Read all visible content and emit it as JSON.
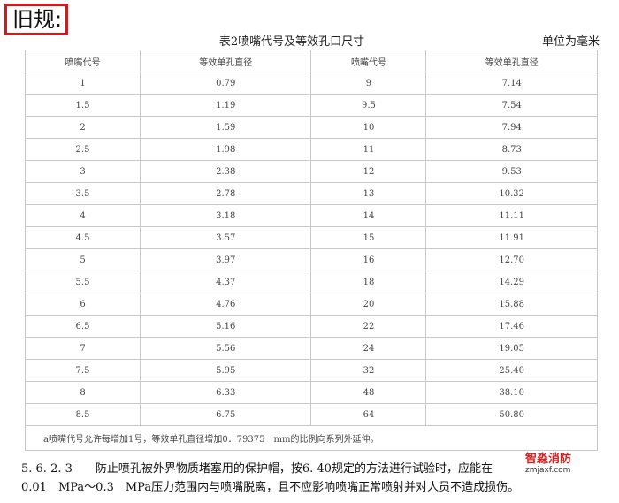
{
  "header": {
    "label": "旧规:",
    "title": "表2喷嘴代号及等效孔口尺寸",
    "unit": "单位为毫米"
  },
  "table": {
    "columns": [
      "喷嘴代号",
      "等效单孔直径",
      "喷嘴代号",
      "等效单孔直径"
    ],
    "rows": [
      [
        "1",
        "0.79",
        "9",
        "7.14"
      ],
      [
        "1.5",
        "1.19",
        "9.5",
        "7.54"
      ],
      [
        "2",
        "1.59",
        "10",
        "7.94"
      ],
      [
        "2.5",
        "1.98",
        "11",
        "8.73"
      ],
      [
        "3",
        "2.38",
        "12",
        "9.53"
      ],
      [
        "3.5",
        "2.78",
        "13",
        "10.32"
      ],
      [
        "4",
        "3.18",
        "14",
        "11.11"
      ],
      [
        "4.5",
        "3.57",
        "15",
        "11.91"
      ],
      [
        "5",
        "3.97",
        "16",
        "12.70"
      ],
      [
        "5.5",
        "4.37",
        "18",
        "14.29"
      ],
      [
        "6",
        "4.76",
        "20",
        "15.88"
      ],
      [
        "6.5",
        "5.16",
        "22",
        "17.46"
      ],
      [
        "7",
        "5.56",
        "24",
        "19.05"
      ],
      [
        "7.5",
        "5.95",
        "32",
        "25.40"
      ],
      [
        "8",
        "6.33",
        "48",
        "38.10"
      ],
      [
        "8.5",
        "6.75",
        "64",
        "50.80"
      ]
    ],
    "footnote": "a喷嘴代号允许每增加1号，等效单孔直径增加0．79375　mm的比例向系列外延伸。"
  },
  "paragraph": {
    "line1": "5. 6. 2. 3　　防止喷孔被外界物质堵塞用的保护帽，按6. 40规定的方法进行试验时，应能在",
    "line2": "0.01　MPa～0.3　MPa压力范围内与喷嘴脱离，且不应影响喷嘴正常喷射并对人员不造成损伤。"
  },
  "watermark": {
    "name": "智淼消防",
    "site": "zmjaxf.com"
  }
}
